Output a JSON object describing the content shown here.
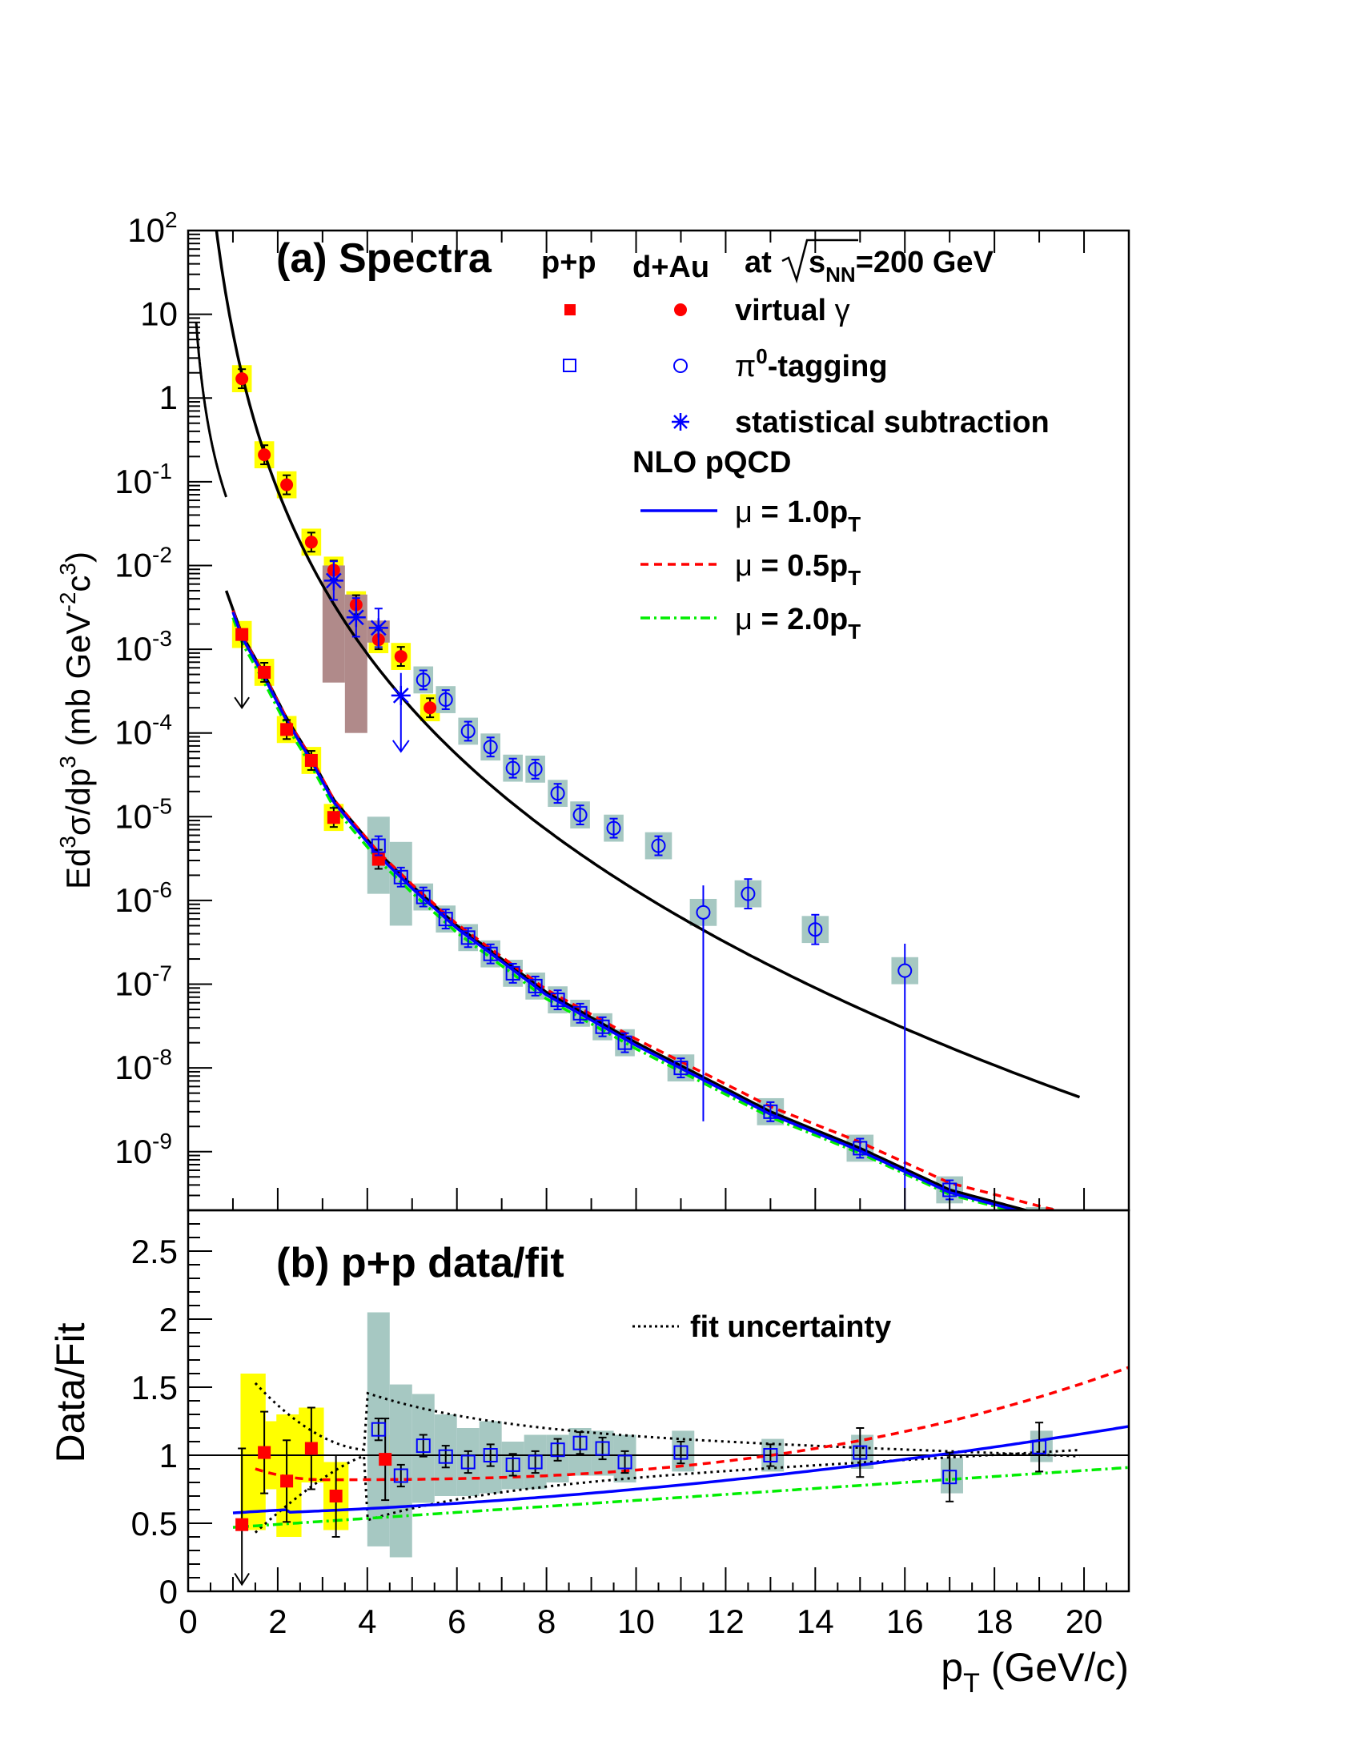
{
  "chart_data": [
    {
      "type": "scatter",
      "panel": "a",
      "title": "(a) Spectra",
      "header": {
        "pp": "p+p",
        "dau": "d+Au",
        "energy_prefix": "at ",
        "energy_sym": "s",
        "energy_sub": "NN",
        "energy_suffix": "=200 GeV"
      },
      "ylabel": "Ed³σ/dp³ (mb GeV⁻²c³)",
      "ylabel_parts": {
        "a": "Ed",
        "b": "3",
        "c": "σ/dp",
        "d": "3",
        "e": " (mb GeV",
        "f": "-2",
        "g": "c",
        "h": "3",
        "i": ")"
      },
      "xlim": [
        0,
        21
      ],
      "ylim_log10": [
        -9.7,
        2
      ],
      "ytick_exponents": [
        2,
        1,
        0,
        -1,
        -2,
        -3,
        -4,
        -5,
        -6,
        -7,
        -8,
        -9
      ],
      "ytick_labels": {
        "10": "10",
        "1": "1",
        "base": "10"
      },
      "legend": {
        "virtual": "virtual ",
        "gamma": "γ",
        "pi0_sym": "π",
        "pi0_sup": "0",
        "pi0_rest": "-tagging",
        "statsub": "statistical subtraction",
        "nlo": "NLO pQCD",
        "mu": "μ",
        "mu10": " = 1.0p",
        "mu05": " = 0.5p",
        "mu20": " = 2.0p",
        "sub_T": "T"
      },
      "series": [
        {
          "name": "d+Au virtual γ",
          "marker": "filled-circle",
          "color": "#ff0000",
          "x": [
            1.2,
            1.7,
            2.2,
            2.75,
            3.25,
            3.75,
            4.25,
            4.75,
            5.4
          ],
          "y": [
            1.7,
            0.21,
            0.092,
            0.019,
            0.0088,
            0.0034,
            0.0013,
            0.00082,
            0.0002
          ]
        },
        {
          "name": "d+Au π0-tagging",
          "marker": "open-circle",
          "color": "#0000ff",
          "x": [
            5.25,
            5.75,
            6.25,
            6.75,
            7.25,
            7.75,
            8.25,
            8.75,
            9.5,
            10.5,
            11.5,
            12.5,
            14.0,
            16.0
          ],
          "y": [
            0.00043,
            0.00025,
            0.000105,
            6.8e-05,
            3.8e-05,
            3.7e-05,
            1.9e-05,
            1.05e-05,
            7.3e-06,
            4.5e-06,
            7.2e-07,
            1.2e-06,
            4.5e-07,
            1.45e-07
          ]
        },
        {
          "name": "d+Au statistical subtraction",
          "marker": "asterisk",
          "color": "#0000ff",
          "x": [
            3.25,
            3.75,
            4.25,
            4.75
          ],
          "y": [
            0.0066,
            0.0024,
            0.0018,
            0.00028
          ]
        },
        {
          "name": "p+p virtual γ",
          "marker": "filled-square",
          "color": "#ff0000",
          "x": [
            1.2,
            1.7,
            2.2,
            2.75,
            3.25,
            4.25
          ],
          "y": [
            0.0015,
            0.00053,
            0.00011,
            4.7e-05,
            9.8e-06,
            3.1e-06
          ]
        },
        {
          "name": "p+p π0-tagging",
          "marker": "open-square",
          "color": "#0000ff",
          "x": [
            4.25,
            4.75,
            5.25,
            5.75,
            6.25,
            6.75,
            7.25,
            7.75,
            8.25,
            8.75,
            9.25,
            9.75,
            11.0,
            13.0,
            15.0,
            17.0,
            19.0
          ],
          "y": [
            4.5e-06,
            1.9e-06,
            1.1e-06,
            6e-07,
            3.6e-07,
            2.3e-07,
            1.35e-07,
            9.5e-08,
            6.5e-08,
            4.5e-08,
            3.1e-08,
            2e-08,
            1e-08,
            3e-09,
            1.1e-09,
            3.5e-10,
            1.5e-10
          ]
        }
      ]
    },
    {
      "type": "scatter",
      "panel": "b",
      "title": "(b) p+p data/fit",
      "xlabel": "p",
      "xlabel_sub": "T",
      "xlabel_unit": " (GeV/c)",
      "ylabel": "Data/Fit",
      "xlim": [
        0,
        21
      ],
      "ylim": [
        0,
        2.8
      ],
      "xticks": [
        "0",
        "2",
        "4",
        "6",
        "8",
        "10",
        "12",
        "14",
        "16",
        "18",
        "20"
      ],
      "yticks": [
        "0",
        "0.5",
        "1",
        "1.5",
        "2",
        "2.5"
      ],
      "legend_fit_uncertainty": "fit uncertainty",
      "series": [
        {
          "name": "p+p virtual γ / fit",
          "marker": "filled-square",
          "color": "#ff0000",
          "x": [
            1.2,
            1.7,
            2.2,
            2.75,
            3.3,
            4.4
          ],
          "y": [
            0.49,
            1.02,
            0.81,
            1.05,
            0.7,
            0.97
          ]
        },
        {
          "name": "p+p π0-tagging / fit",
          "marker": "open-square",
          "color": "#0000ff",
          "x": [
            4.25,
            4.75,
            5.25,
            5.75,
            6.25,
            6.75,
            7.25,
            7.75,
            8.25,
            8.75,
            9.25,
            9.75,
            11.0,
            13.0,
            15.0,
            17.0,
            19.0
          ],
          "y": [
            1.19,
            0.85,
            1.07,
            0.99,
            0.95,
            1.0,
            0.93,
            0.95,
            1.04,
            1.09,
            1.05,
            0.95,
            1.02,
            1.0,
            1.02,
            0.84,
            1.06
          ]
        }
      ]
    }
  ]
}
